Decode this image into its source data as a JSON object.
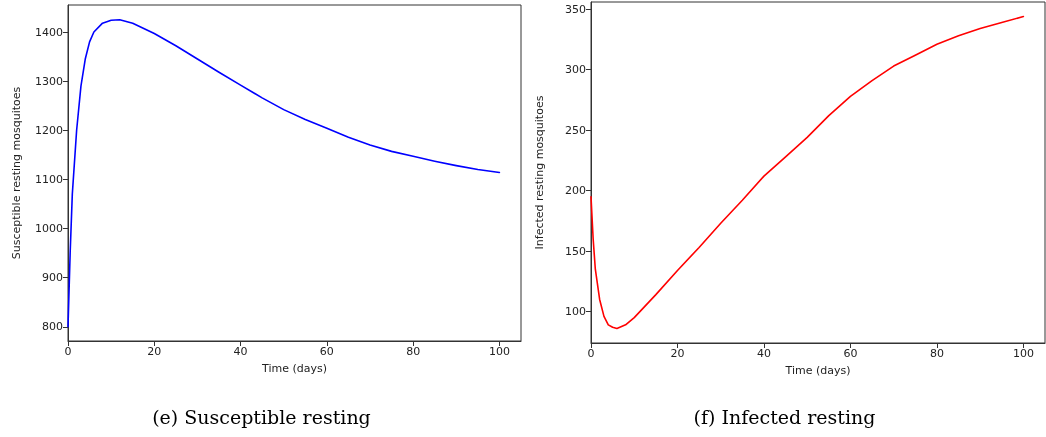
{
  "chart_data": [
    {
      "type": "line",
      "title": "(e) Susceptible resting",
      "xlabel": "Time (days)",
      "ylabel": "Susceptible resting mosquitoes",
      "x": [
        0,
        0.5,
        1,
        2,
        3,
        4,
        5,
        6,
        8,
        10,
        12,
        15,
        20,
        25,
        30,
        35,
        40,
        45,
        50,
        55,
        60,
        65,
        70,
        75,
        80,
        85,
        90,
        95,
        100
      ],
      "series": [
        {
          "color": "#0000ff",
          "values": [
            800,
            950,
            1070,
            1200,
            1290,
            1345,
            1380,
            1400,
            1418,
            1424,
            1425,
            1418,
            1397,
            1372,
            1345,
            1318,
            1292,
            1266,
            1242,
            1222,
            1204,
            1186,
            1170,
            1157,
            1147,
            1137,
            1128,
            1120,
            1114
          ]
        }
      ],
      "xlim": [
        0,
        105
      ],
      "xticks": [
        0,
        20,
        40,
        60,
        80,
        100
      ],
      "ylim": [
        771,
        1455
      ],
      "yticks": [
        800,
        900,
        1000,
        1100,
        1200,
        1300,
        1400
      ],
      "grid": false,
      "marker": "none",
      "line_style": "solid"
    },
    {
      "type": "line",
      "title": "(f) Infected resting",
      "xlabel": "Time (days)",
      "ylabel": "Infected resting mosquitoes",
      "x": [
        0,
        0.5,
        1,
        2,
        3,
        4,
        5,
        6,
        8,
        10,
        15,
        20,
        25,
        30,
        35,
        40,
        45,
        50,
        55,
        60,
        65,
        70,
        75,
        80,
        85,
        90,
        95,
        100
      ],
      "series": [
        {
          "color": "#ff0000",
          "values": [
            195,
            160,
            135,
            110,
            96,
            89,
            87,
            86,
            89,
            95,
            114,
            134,
            153,
            173,
            192,
            212,
            228,
            244,
            262,
            278,
            291,
            303,
            312,
            321,
            328,
            334,
            339,
            344
          ]
        }
      ],
      "xlim": [
        0,
        105
      ],
      "xticks": [
        0,
        20,
        40,
        60,
        80,
        100
      ],
      "ylim": [
        74,
        356
      ],
      "yticks": [
        100,
        150,
        200,
        250,
        300,
        350
      ],
      "grid": false,
      "marker": "none",
      "line_style": "solid"
    }
  ]
}
